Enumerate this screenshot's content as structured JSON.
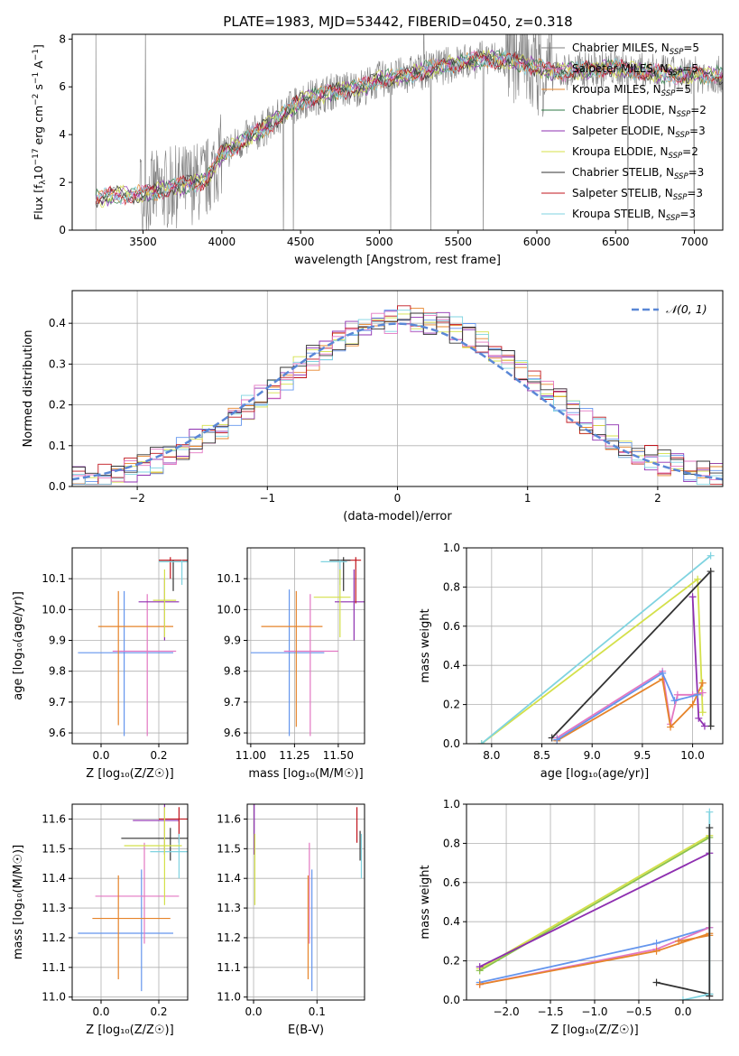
{
  "figure_title": "PLATE=1983, MJD=53442, FIBERID=0450, z=0.318",
  "models": [
    {
      "name": "Chabrier MILES",
      "nssp": "5",
      "color": "#7f7f7f"
    },
    {
      "name": "Salpeter MILES",
      "nssp": "5",
      "color": "#e377c2"
    },
    {
      "name": "Kroupa MILES",
      "nssp": "5",
      "color": "#e6842a"
    },
    {
      "name": "Chabrier ELODIE",
      "nssp": "2",
      "color": "#2c7a45"
    },
    {
      "name": "Salpeter ELODIE",
      "nssp": "3",
      "color": "#8e2fb0"
    },
    {
      "name": "Kroupa ELODIE",
      "nssp": "2",
      "color": "#d4e04a"
    },
    {
      "name": "Chabrier STELIB",
      "nssp": "3",
      "color": "#333333"
    },
    {
      "name": "Salpeter STELIB",
      "nssp": "3",
      "color": "#c0141c"
    },
    {
      "name": "Kroupa STELIB",
      "nssp": "3",
      "color": "#7fd3e0"
    }
  ],
  "chart_data": [
    {
      "id": "spectrum",
      "type": "line",
      "xlabel": "wavelength [Angstrom, rest frame]",
      "ylabel_main": "Flux [f",
      "ylabel_sub": "λ",
      "ylabel_rest": "10",
      "ylabel_exp1": "−17",
      "ylabel_mid": " erg cm",
      "ylabel_exp2": "−2",
      "ylabel_mid2": " s",
      "ylabel_exp3": "−1",
      "ylabel_end": " A",
      "ylabel_exp4": "−1",
      "ylabel_close": "]",
      "xlim": [
        3050,
        7180
      ],
      "ylim": [
        0,
        8.2
      ],
      "xticks": [
        3500,
        4000,
        4500,
        5000,
        5500,
        6000,
        6500,
        7000
      ],
      "yticks": [
        0,
        2,
        4,
        6,
        8
      ],
      "grid": false,
      "legend": "top-right",
      "continuum_x": [
        3200,
        3300,
        3500,
        3700,
        3900,
        4000,
        4100,
        4300,
        4500,
        4700,
        4900,
        5000,
        5100,
        5300,
        5500,
        5700,
        5900,
        6100,
        6300,
        6500,
        6700,
        6900,
        7100
      ],
      "continuum_y": [
        1.3,
        1.45,
        1.5,
        1.8,
        2.1,
        3.2,
        3.6,
        4.4,
        5.4,
        5.8,
        6.0,
        6.3,
        6.4,
        6.7,
        7.0,
        7.2,
        7.0,
        6.6,
        6.7,
        6.8,
        6.6,
        6.5,
        6.5
      ]
    },
    {
      "id": "residuals",
      "type": "line",
      "xlabel": "(data-model)/error",
      "ylabel": "Normed distribution",
      "xlim": [
        -2.5,
        2.5
      ],
      "ylim": [
        0,
        0.48
      ],
      "xticks": [
        -2,
        -1,
        0,
        1,
        2
      ],
      "xticklabels": [
        "−2",
        "−1",
        "0",
        "1",
        "2"
      ],
      "yticks": [
        0,
        0.1,
        0.2,
        0.3,
        0.4
      ],
      "yticklabels": [
        "0.0",
        "0.1",
        "0.2",
        "0.3",
        "0.4"
      ],
      "grid": true,
      "legend_label": "𝒩(0, 1)",
      "legend_color": "#5a87d6",
      "legend": "top-right"
    },
    {
      "id": "age_vs_Z",
      "type": "scatter",
      "xlabel": "Z [log₁₀(Z/Z☉)]",
      "ylabel": "age  [log₁₀(age/yr)]",
      "xlim": [
        -0.1,
        0.3
      ],
      "ylim": [
        9.565,
        10.2
      ],
      "xticks": [
        0.0,
        0.2
      ],
      "xticklabels": [
        "0.0",
        "0.2"
      ],
      "yticks": [
        9.6,
        9.7,
        9.8,
        9.9,
        10.0,
        10.1
      ],
      "yticklabels": [
        "9.6",
        "9.7",
        "9.8",
        "9.9",
        "10.0",
        "10.1"
      ],
      "grid": true,
      "points": [
        {
          "x": 0.08,
          "xlo": -0.08,
          "xhi": 0.25,
          "y": 9.86,
          "ylo": 9.59,
          "yhi": 10.06,
          "color": "#6495ed"
        },
        {
          "x": 0.16,
          "xlo": 0.04,
          "xhi": 0.26,
          "y": 9.865,
          "ylo": 9.59,
          "yhi": 10.05,
          "color": "#e377c2"
        },
        {
          "x": 0.06,
          "xlo": -0.01,
          "xhi": 0.25,
          "y": 9.945,
          "ylo": 9.625,
          "yhi": 10.06,
          "color": "#e6842a"
        },
        {
          "x": 0.22,
          "xlo": 0.13,
          "xhi": 0.27,
          "y": 10.025,
          "ylo": 9.9,
          "yhi": 10.1,
          "color": "#8e2fb0"
        },
        {
          "x": 0.24,
          "xlo": 0.2,
          "xhi": 0.3,
          "y": 10.16,
          "ylo": 10.1,
          "yhi": 10.17,
          "color": "#c0141c"
        },
        {
          "x": 0.25,
          "xlo": 0.2,
          "xhi": 0.3,
          "y": 10.155,
          "ylo": 10.06,
          "yhi": 10.16,
          "color": "#333333"
        },
        {
          "x": 0.28,
          "xlo": 0.2,
          "xhi": 0.3,
          "y": 10.155,
          "ylo": 10.08,
          "yhi": 10.16,
          "color": "#7fd3e0"
        },
        {
          "x": 0.22,
          "xlo": 0.18,
          "xhi": 0.26,
          "y": 10.03,
          "ylo": 9.91,
          "yhi": 10.13,
          "color": "#d4e04a"
        }
      ]
    },
    {
      "id": "age_vs_mass",
      "type": "scatter",
      "xlabel": "mass [log₁₀(M/M☉)]",
      "xlim": [
        10.98,
        11.65
      ],
      "ylim": [
        9.565,
        10.2
      ],
      "xticks": [
        11.0,
        11.25,
        11.5
      ],
      "xticklabels": [
        "11.00",
        "11.25",
        "11.50"
      ],
      "yticks": [
        9.6,
        9.7,
        9.8,
        9.9,
        10.0,
        10.1
      ],
      "yticklabels": [
        "9.6",
        "9.7",
        "9.8",
        "9.9",
        "10.0",
        "10.1"
      ],
      "grid": true,
      "points": [
        {
          "x": 11.22,
          "xlo": 11.0,
          "xhi": 11.42,
          "y": 9.86,
          "ylo": 9.59,
          "yhi": 10.065,
          "color": "#6495ed"
        },
        {
          "x": 11.34,
          "xlo": 11.19,
          "xhi": 11.5,
          "y": 9.865,
          "ylo": 9.59,
          "yhi": 10.05,
          "color": "#e377c2"
        },
        {
          "x": 11.26,
          "xlo": 11.06,
          "xhi": 11.41,
          "y": 9.945,
          "ylo": 9.62,
          "yhi": 10.06,
          "color": "#e6842a"
        },
        {
          "x": 11.59,
          "xlo": 11.48,
          "xhi": 11.66,
          "y": 10.025,
          "ylo": 9.9,
          "yhi": 10.13,
          "color": "#8e2fb0"
        },
        {
          "x": 11.6,
          "xlo": 11.53,
          "xhi": 11.63,
          "y": 10.16,
          "ylo": 10.02,
          "yhi": 10.17,
          "color": "#c0141c"
        },
        {
          "x": 11.53,
          "xlo": 11.45,
          "xhi": 11.57,
          "y": 10.16,
          "ylo": 10.06,
          "yhi": 10.17,
          "color": "#333333"
        },
        {
          "x": 11.51,
          "xlo": 11.4,
          "xhi": 11.55,
          "y": 10.155,
          "ylo": 10.08,
          "yhi": 10.16,
          "color": "#7fd3e0"
        },
        {
          "x": 11.51,
          "xlo": 11.36,
          "xhi": 11.57,
          "y": 10.04,
          "ylo": 9.91,
          "yhi": 10.13,
          "color": "#d4e04a"
        }
      ]
    },
    {
      "id": "massweight_vs_age",
      "type": "line",
      "xlabel": "age  [log₁₀(age/yr)]",
      "ylabel": "mass weight",
      "xlim": [
        7.75,
        10.3
      ],
      "ylim": [
        0,
        1.0
      ],
      "xticks": [
        8.0,
        8.5,
        9.0,
        9.5,
        10.0
      ],
      "xticklabels": [
        "8.0",
        "8.5",
        "9.0",
        "9.5",
        "10.0"
      ],
      "yticks": [
        0,
        0.2,
        0.4,
        0.6,
        0.8,
        1.0
      ],
      "yticklabels": [
        "0.0",
        "0.2",
        "0.4",
        "0.6",
        "0.8",
        "1.0"
      ],
      "grid": true,
      "series": [
        {
          "color": "#d4e04a",
          "x": [
            7.9,
            10.05,
            10.1
          ],
          "y": [
            0.0,
            0.84,
            0.16
          ]
        },
        {
          "color": "#333333",
          "x": [
            8.6,
            10.18,
            10.18
          ],
          "y": [
            0.03,
            0.88,
            0.09
          ]
        },
        {
          "color": "#7fd3e0",
          "x": [
            7.9,
            10.18
          ],
          "y": [
            0.0,
            0.96
          ]
        },
        {
          "color": "#8e2fb0",
          "x": [
            10.0,
            10.06,
            10.12
          ],
          "y": [
            0.75,
            0.13,
            0.09
          ]
        },
        {
          "color": "#e377c2",
          "x": [
            8.65,
            9.7,
            9.78,
            9.85,
            10.0,
            10.1
          ],
          "y": [
            0.03,
            0.37,
            0.1,
            0.25,
            0.25,
            0.26
          ]
        },
        {
          "color": "#e6842a",
          "x": [
            8.65,
            9.7,
            9.78,
            10.0,
            10.1
          ],
          "y": [
            0.015,
            0.33,
            0.085,
            0.2,
            0.31
          ]
        },
        {
          "color": "#6495ed",
          "x": [
            8.65,
            9.7,
            9.82,
            10.05
          ],
          "y": [
            0.02,
            0.36,
            0.22,
            0.25
          ]
        }
      ]
    },
    {
      "id": "mass_vs_Z",
      "type": "scatter",
      "xlabel": "Z [log₁₀(Z/Z☉)]",
      "ylabel": "mass [log₁₀(M/M☉)]",
      "xlim": [
        -0.1,
        0.3
      ],
      "ylim": [
        10.99,
        11.65
      ],
      "xticks": [
        0.0,
        0.2
      ],
      "xticklabels": [
        "0.0",
        "0.2"
      ],
      "yticks": [
        11.0,
        11.1,
        11.2,
        11.3,
        11.4,
        11.5,
        11.6
      ],
      "yticklabels": [
        "11.0",
        "11.1",
        "11.2",
        "11.3",
        "11.4",
        "11.5",
        "11.6"
      ],
      "grid": true,
      "points": [
        {
          "x": 0.14,
          "xlo": -0.08,
          "xhi": 0.25,
          "y": 11.215,
          "ylo": 11.02,
          "yhi": 11.43,
          "color": "#6495ed"
        },
        {
          "x": 0.15,
          "xlo": -0.02,
          "xhi": 0.27,
          "y": 11.34,
          "ylo": 11.18,
          "yhi": 11.52,
          "color": "#e377c2"
        },
        {
          "x": 0.06,
          "xlo": -0.03,
          "xhi": 0.24,
          "y": 11.265,
          "ylo": 11.06,
          "yhi": 11.41,
          "color": "#e6842a"
        },
        {
          "x": 0.22,
          "xlo": 0.11,
          "xhi": 0.27,
          "y": 11.595,
          "ylo": 11.48,
          "yhi": 11.65,
          "color": "#8e2fb0"
        },
        {
          "x": 0.27,
          "xlo": 0.2,
          "xhi": 0.3,
          "y": 11.6,
          "ylo": 11.52,
          "yhi": 11.64,
          "color": "#c0141c"
        },
        {
          "x": 0.24,
          "xlo": 0.07,
          "xhi": 0.3,
          "y": 11.535,
          "ylo": 11.46,
          "yhi": 11.57,
          "color": "#333333"
        },
        {
          "x": 0.27,
          "xlo": 0.17,
          "xhi": 0.3,
          "y": 11.49,
          "ylo": 11.4,
          "yhi": 11.55,
          "color": "#7fd3e0"
        },
        {
          "x": 0.22,
          "xlo": 0.08,
          "xhi": 0.28,
          "y": 11.51,
          "ylo": 11.31,
          "yhi": 11.64,
          "color": "#d4e04a"
        }
      ]
    },
    {
      "id": "mass_vs_ebv",
      "type": "scatter",
      "xlabel": "E(B-V)",
      "xlim": [
        -0.01,
        0.175
      ],
      "ylim": [
        10.99,
        11.65
      ],
      "xticks": [
        0.0,
        0.1
      ],
      "xticklabels": [
        "0.0",
        "0.1"
      ],
      "yticks": [
        11.0,
        11.1,
        11.2,
        11.3,
        11.4,
        11.5,
        11.6
      ],
      "yticklabels": [
        "11.0",
        "11.1",
        "11.2",
        "11.3",
        "11.4",
        "11.5",
        "11.6"
      ],
      "grid": true,
      "points": [
        {
          "x": 0.092,
          "ylo": 11.02,
          "yhi": 11.43,
          "y": 11.21,
          "color": "#6495ed"
        },
        {
          "x": 0.088,
          "ylo": 11.18,
          "yhi": 11.52,
          "y": 11.34,
          "color": "#e377c2"
        },
        {
          "x": 0.086,
          "ylo": 11.06,
          "yhi": 11.41,
          "y": 11.26,
          "color": "#e6842a"
        },
        {
          "x": 0.001,
          "ylo": 11.48,
          "yhi": 11.66,
          "y": 11.59,
          "color": "#8e2fb0"
        },
        {
          "x": 0.163,
          "ylo": 11.52,
          "yhi": 11.64,
          "y": 11.6,
          "color": "#c0141c"
        },
        {
          "x": 0.168,
          "ylo": 11.46,
          "yhi": 11.56,
          "y": 11.53,
          "color": "#333333"
        },
        {
          "x": 0.17,
          "ylo": 11.4,
          "yhi": 11.55,
          "y": 11.49,
          "color": "#7fd3e0"
        },
        {
          "x": 0.002,
          "ylo": 11.31,
          "yhi": 11.55,
          "y": 11.51,
          "color": "#d4e04a"
        }
      ]
    },
    {
      "id": "massweight_vs_Z",
      "type": "line",
      "xlabel": "Z [log₁₀(Z/Z☉)]",
      "ylabel": "mass weight",
      "xlim": [
        -2.45,
        0.45
      ],
      "ylim": [
        0,
        1.0
      ],
      "xticks": [
        -2.0,
        -1.5,
        -1.0,
        -0.5,
        0.0
      ],
      "xticklabels": [
        "−2.0",
        "−1.5",
        "−1.0",
        "−0.5",
        "0.0"
      ],
      "yticks": [
        0,
        0.2,
        0.4,
        0.6,
        0.8,
        1.0
      ],
      "yticklabels": [
        "0.0",
        "0.2",
        "0.4",
        "0.6",
        "0.8",
        "1.0"
      ],
      "grid": true,
      "series": [
        {
          "color": "#d4e04a",
          "x": [
            -2.3,
            0.3
          ],
          "y": [
            0.16,
            0.84
          ]
        },
        {
          "color": "#8bc34a",
          "x": [
            -2.3,
            0.3
          ],
          "y": [
            0.15,
            0.83
          ]
        },
        {
          "color": "#8e2fb0",
          "x": [
            -2.3,
            0.3
          ],
          "y": [
            0.17,
            0.75
          ]
        },
        {
          "color": "#6495ed",
          "x": [
            -2.3,
            -0.3,
            0.3
          ],
          "y": [
            0.09,
            0.29,
            0.37
          ]
        },
        {
          "color": "#e377c2",
          "x": [
            -2.3,
            -0.3,
            0.3
          ],
          "y": [
            0.08,
            0.26,
            0.37
          ]
        },
        {
          "color": "#e6842a",
          "x": [
            -2.3,
            -0.3,
            0.3
          ],
          "y": [
            0.08,
            0.25,
            0.34
          ]
        },
        {
          "color": "#e6842a",
          "x": [
            -0.05,
            0.3
          ],
          "y": [
            0.3,
            0.33
          ]
        },
        {
          "color": "#333333",
          "x": [
            -0.3,
            0.3
          ],
          "y": [
            0.09,
            0.03
          ]
        },
        {
          "color": "#7fd3e0",
          "x": [
            0.0,
            0.3
          ],
          "y": [
            0.0,
            0.03
          ]
        },
        {
          "color": "#7fd3e0",
          "x": [
            0.3,
            0.3
          ],
          "y": [
            0.03,
            0.96
          ]
        },
        {
          "color": "#333333",
          "x": [
            0.3,
            0.3
          ],
          "y": [
            0.02,
            0.88
          ]
        }
      ]
    }
  ]
}
